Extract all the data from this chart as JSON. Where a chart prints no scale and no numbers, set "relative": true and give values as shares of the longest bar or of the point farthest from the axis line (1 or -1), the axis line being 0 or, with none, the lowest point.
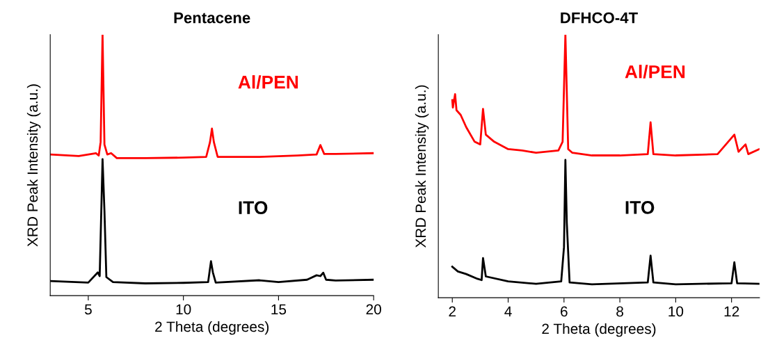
{
  "chart_data": [
    {
      "type": "line",
      "title": "Pentacene",
      "xlabel": "2 Theta (degrees)",
      "ylabel": "XRD Peak Intensity (a.u.)",
      "relative": true,
      "xlim": [
        3,
        20
      ],
      "xticks": [
        5,
        10,
        15,
        20
      ],
      "series": [
        {
          "name": "Al/PEN",
          "color": "#ff0000",
          "x": [
            3.0,
            4.5,
            5.4,
            5.55,
            5.65,
            5.75,
            5.85,
            6.0,
            6.2,
            6.5,
            8,
            10,
            11.2,
            11.4,
            11.5,
            11.6,
            11.8,
            14,
            16,
            17.0,
            17.2,
            17.4,
            18,
            20
          ],
          "values": [
            0.541,
            0.535,
            0.546,
            0.537,
            0.589,
            1.0,
            0.579,
            0.541,
            0.546,
            0.527,
            0.527,
            0.529,
            0.532,
            0.589,
            0.64,
            0.589,
            0.532,
            0.532,
            0.537,
            0.541,
            0.577,
            0.543,
            0.543,
            0.546
          ]
        },
        {
          "name": "ITO",
          "color": "#000000",
          "x": [
            3.0,
            5.0,
            5.5,
            5.6,
            5.7,
            5.75,
            5.85,
            5.95,
            6.3,
            8,
            10,
            11.3,
            11.45,
            11.55,
            11.7,
            14,
            15,
            16.5,
            17.0,
            17.2,
            17.35,
            17.5,
            18,
            20
          ],
          "values": [
            0.056,
            0.05,
            0.089,
            0.075,
            0.372,
            0.523,
            0.325,
            0.071,
            0.052,
            0.047,
            0.049,
            0.052,
            0.132,
            0.089,
            0.05,
            0.059,
            0.052,
            0.061,
            0.078,
            0.075,
            0.088,
            0.061,
            0.058,
            0.061
          ]
        }
      ]
    },
    {
      "type": "line",
      "title": "DFHCO-4T",
      "xlabel": "2 Theta (degrees)",
      "ylabel": "XRD Peak Intensity (a.u.)",
      "relative": true,
      "xlim": [
        1.5,
        13
      ],
      "xticks": [
        2,
        4,
        6,
        8,
        10,
        12
      ],
      "series": [
        {
          "name": "Al/PEN",
          "color": "#ff0000",
          "x": [
            2.0,
            2.02,
            2.1,
            2.15,
            2.3,
            2.5,
            2.8,
            3.0,
            3.1,
            3.2,
            3.5,
            4,
            4.5,
            5,
            5.8,
            5.95,
            6.05,
            6.15,
            6.3,
            7,
            8,
            9.0,
            9.1,
            9.2,
            10,
            11.5,
            12.1,
            12.25,
            12.5,
            12.6,
            13.0
          ],
          "values": [
            0.751,
            0.723,
            0.774,
            0.713,
            0.695,
            0.648,
            0.593,
            0.583,
            0.718,
            0.62,
            0.593,
            0.565,
            0.56,
            0.551,
            0.56,
            0.593,
            1.0,
            0.565,
            0.551,
            0.541,
            0.541,
            0.546,
            0.667,
            0.546,
            0.541,
            0.546,
            0.62,
            0.555,
            0.583,
            0.546,
            0.565
          ]
        },
        {
          "name": "ITO",
          "color": "#000000",
          "x": [
            2.0,
            2.2,
            2.5,
            2.9,
            3.05,
            3.1,
            3.2,
            4,
            5,
            5.9,
            6.0,
            6.05,
            6.1,
            6.2,
            7,
            9.0,
            9.1,
            9.2,
            10,
            12.0,
            12.1,
            12.2,
            13.0
          ],
          "values": [
            0.118,
            0.1,
            0.09,
            0.072,
            0.067,
            0.151,
            0.081,
            0.062,
            0.053,
            0.062,
            0.193,
            0.524,
            0.286,
            0.058,
            0.051,
            0.058,
            0.16,
            0.058,
            0.051,
            0.055,
            0.135,
            0.055,
            0.053
          ]
        }
      ]
    }
  ]
}
